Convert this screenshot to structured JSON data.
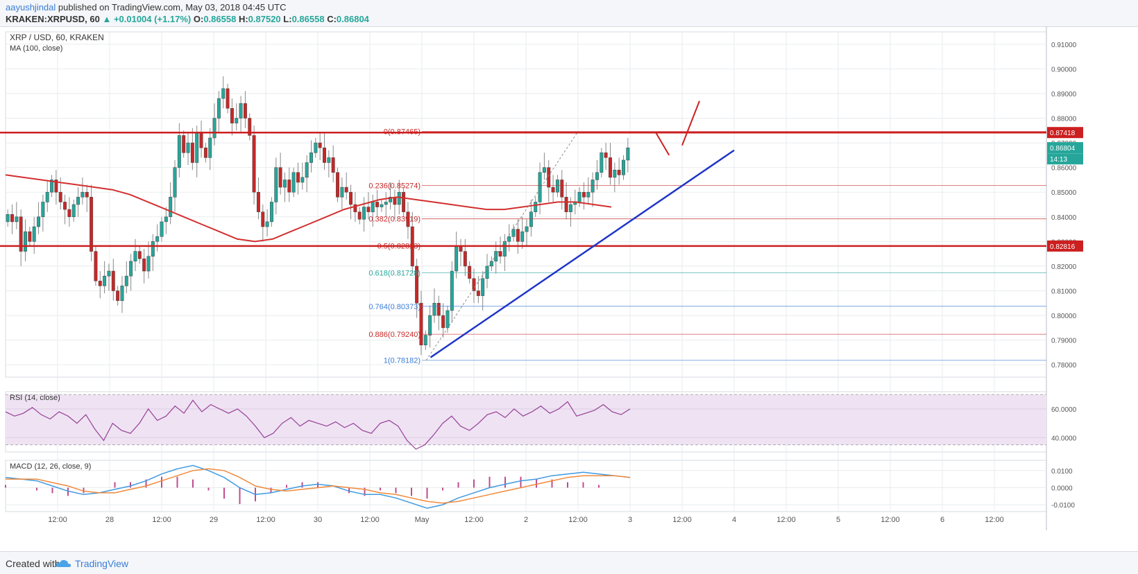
{
  "header": {
    "author": "aayushjindal",
    "published": "published on TradingView.com, May 03, 2018 04:45 UTC",
    "symbol_line": "KRAKEN:XRPUSD, 60",
    "open_label": "O:",
    "open": "0.86558",
    "high_label": "H:",
    "high": "0.87520",
    "low_label": "L:",
    "low": "0.86558",
    "close_label": "C:",
    "close": "0.86804",
    "change": "+0.01004 (+1.17%)"
  },
  "footer": {
    "created": "Created with",
    "brand": "TradingView"
  },
  "colors": {
    "up": "#26a69a",
    "down": "#c62828",
    "ma": "#d32f2f",
    "trend": "#1f35c8",
    "level": "#cc1f1f",
    "rsi": "#9c4a9c",
    "macd": "#3f9ae0",
    "signal": "#f0893a",
    "hist": "#c04a8f",
    "grid": "#e8ebee"
  },
  "chart_data": [
    {
      "type": "candlestick",
      "title": "XRP / USD, 60, KRAKEN",
      "indicator_label": "MA (100, close)",
      "ylim": [
        0.775,
        0.915
      ],
      "y_ticks": [
        0.78,
        0.79,
        0.8,
        0.81,
        0.82,
        0.83,
        0.84,
        0.85,
        0.86,
        0.87,
        0.88,
        0.89,
        0.9,
        0.91
      ],
      "x_ticks": [
        {
          "label": "12:00",
          "x": 12
        },
        {
          "label": "28",
          "x": 24
        },
        {
          "label": "12:00",
          "x": 36
        },
        {
          "label": "29",
          "x": 48
        },
        {
          "label": "12:00",
          "x": 60
        },
        {
          "label": "30",
          "x": 72
        },
        {
          "label": "12:00",
          "x": 84
        },
        {
          "label": "May",
          "x": 96
        },
        {
          "label": "12:00",
          "x": 108
        },
        {
          "label": "2",
          "x": 120
        },
        {
          "label": "12:00",
          "x": 132
        },
        {
          "label": "3",
          "x": 144
        },
        {
          "label": "12:00",
          "x": 156
        },
        {
          "label": "4",
          "x": 168
        },
        {
          "label": "12:00",
          "x": 180
        },
        {
          "label": "5",
          "x": 192
        },
        {
          "label": "12:00",
          "x": 204
        },
        {
          "label": "6",
          "x": 216
        },
        {
          "label": "12:00",
          "x": 228
        }
      ],
      "xlim": [
        0,
        240
      ],
      "close_series": [
        0.841,
        0.838,
        0.84,
        0.826,
        0.834,
        0.83,
        0.836,
        0.84,
        0.846,
        0.85,
        0.855,
        0.85,
        0.846,
        0.843,
        0.84,
        0.845,
        0.848,
        0.85,
        0.848,
        0.826,
        0.814,
        0.812,
        0.816,
        0.818,
        0.81,
        0.806,
        0.812,
        0.816,
        0.822,
        0.826,
        0.823,
        0.818,
        0.824,
        0.83,
        0.832,
        0.838,
        0.84,
        0.848,
        0.86,
        0.873,
        0.866,
        0.87,
        0.862,
        0.874,
        0.868,
        0.864,
        0.872,
        0.88,
        0.888,
        0.892,
        0.884,
        0.878,
        0.88,
        0.886,
        0.88,
        0.873,
        0.85,
        0.842,
        0.836,
        0.838,
        0.846,
        0.86,
        0.852,
        0.855,
        0.85,
        0.858,
        0.854,
        0.856,
        0.862,
        0.866,
        0.87,
        0.868,
        0.862,
        0.864,
        0.858,
        0.848,
        0.852,
        0.85,
        0.845,
        0.842,
        0.839,
        0.844,
        0.842,
        0.846,
        0.844,
        0.845,
        0.846,
        0.848,
        0.845,
        0.85,
        0.842,
        0.836,
        0.82,
        0.805,
        0.788,
        0.792,
        0.8,
        0.805,
        0.8,
        0.795,
        0.802,
        0.818,
        0.828,
        0.826,
        0.82,
        0.815,
        0.81,
        0.808,
        0.815,
        0.82,
        0.822,
        0.826,
        0.824,
        0.83,
        0.832,
        0.835,
        0.83,
        0.834,
        0.836,
        0.842,
        0.846,
        0.858,
        0.86,
        0.852,
        0.85,
        0.855,
        0.848,
        0.842,
        0.845,
        0.846,
        0.85,
        0.848,
        0.85,
        0.855,
        0.858,
        0.866,
        0.864,
        0.856,
        0.859,
        0.857,
        0.863,
        0.868
      ],
      "ma_series": [
        0.857,
        0.856,
        0.855,
        0.854,
        0.853,
        0.852,
        0.851,
        0.849,
        0.846,
        0.843,
        0.84,
        0.837,
        0.834,
        0.831,
        0.83,
        0.831,
        0.834,
        0.837,
        0.84,
        0.843,
        0.845,
        0.847,
        0.848,
        0.847,
        0.846,
        0.845,
        0.844,
        0.843,
        0.843,
        0.844,
        0.845,
        0.846,
        0.846,
        0.845,
        0.844
      ],
      "levels": [
        {
          "label": "0.87418",
          "value": 0.87418
        },
        {
          "label": "0.82816",
          "value": 0.82816
        }
      ],
      "price_tags": [
        {
          "label": "0.86804",
          "value": 0.86804
        },
        {
          "label": "14:13",
          "value": 0.8635
        }
      ],
      "fib": [
        {
          "label": "0(0.87465)",
          "value": 0.87465,
          "color": "#c62828"
        },
        {
          "label": "0.236(0.85274)",
          "value": 0.85274,
          "color": "#c62828"
        },
        {
          "label": "0.382(0.83919)",
          "value": 0.83919,
          "color": "#c62828"
        },
        {
          "label": "0.5(0.82823)",
          "value": 0.82823,
          "color": "#c62828"
        },
        {
          "label": "0.618(0.81728)",
          "value": 0.81728,
          "color": "#26a69a"
        },
        {
          "label": "0.764(0.80373)",
          "value": 0.80373,
          "color": "#3a7dd8"
        },
        {
          "label": "0.886(0.79240)",
          "value": 0.7924,
          "color": "#c62828"
        },
        {
          "label": "1(0.78182)",
          "value": 0.78182,
          "color": "#3a7dd8"
        }
      ],
      "trendline": {
        "x1": 98,
        "y1": 0.783,
        "x2": 168,
        "y2": 0.867
      },
      "forecast": [
        {
          "x1": 150,
          "y1": 0.874,
          "x2": 153,
          "y2": 0.865
        },
        {
          "x1": 156,
          "y1": 0.869,
          "x2": 160,
          "y2": 0.887
        }
      ]
    },
    {
      "type": "line",
      "title": "RSI (14, close)",
      "ylim": [
        30,
        72
      ],
      "y_ticks": [
        {
          "label": "60.0000",
          "value": 60
        },
        {
          "label": "40.0000",
          "value": 40
        }
      ],
      "band": [
        35,
        70
      ],
      "values": [
        58,
        55,
        57,
        61,
        56,
        53,
        58,
        55,
        50,
        56,
        46,
        38,
        50,
        45,
        43,
        50,
        60,
        52,
        55,
        62,
        57,
        66,
        58,
        63,
        60,
        57,
        60,
        55,
        48,
        40,
        43,
        50,
        54,
        48,
        52,
        50,
        48,
        51,
        47,
        50,
        45,
        43,
        50,
        52,
        48,
        38,
        32,
        35,
        42,
        50,
        55,
        48,
        45,
        50,
        56,
        58,
        54,
        60,
        55,
        58,
        62,
        57,
        60,
        65,
        55,
        57,
        59,
        63,
        58,
        56,
        60
      ]
    },
    {
      "type": "macd",
      "title": "MACD (12, 26, close, 9)",
      "ylim": [
        -0.014,
        0.016
      ],
      "y_ticks": [
        {
          "label": "0.0100",
          "value": 0.01
        },
        {
          "label": "0.0000",
          "value": 0.0
        },
        {
          "label": "-0.0100",
          "value": -0.01
        }
      ],
      "macd": [
        0.006,
        0.005,
        0.004,
        0.001,
        -0.002,
        -0.004,
        -0.003,
        -0.001,
        0.001,
        0.004,
        0.008,
        0.011,
        0.013,
        0.01,
        0.006,
        0.0,
        -0.004,
        -0.003,
        -0.001,
        0.001,
        0.002,
        0.001,
        -0.002,
        -0.004,
        -0.004,
        -0.006,
        -0.009,
        -0.012,
        -0.01,
        -0.006,
        -0.003,
        0.0,
        0.002,
        0.004,
        0.005,
        0.007,
        0.008,
        0.009,
        0.008,
        0.007,
        0.006
      ],
      "signal": [
        0.005,
        0.005,
        0.005,
        0.003,
        0.001,
        -0.002,
        -0.003,
        -0.003,
        -0.001,
        0.001,
        0.004,
        0.007,
        0.01,
        0.011,
        0.01,
        0.006,
        0.001,
        -0.001,
        -0.002,
        -0.001,
        0.0,
        0.001,
        0.0,
        -0.001,
        -0.003,
        -0.004,
        -0.006,
        -0.008,
        -0.009,
        -0.008,
        -0.006,
        -0.004,
        -0.002,
        0.0,
        0.002,
        0.004,
        0.006,
        0.007,
        0.007,
        0.007,
        0.006
      ]
    }
  ]
}
